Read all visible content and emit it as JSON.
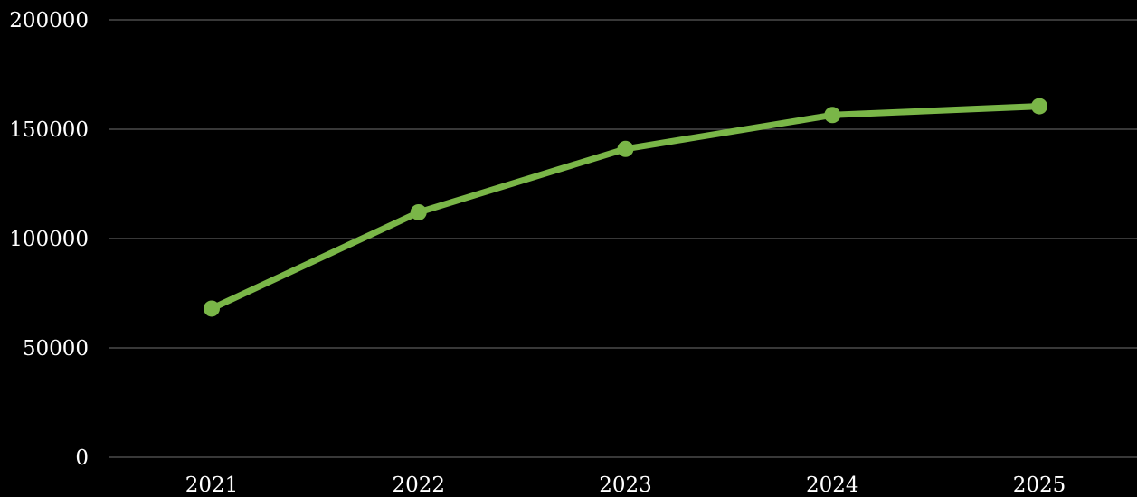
{
  "chart_data": {
    "type": "line",
    "categories": [
      "2021",
      "2022",
      "2023",
      "2024",
      "2025"
    ],
    "series": [
      {
        "values": [
          68000,
          112000,
          141000,
          156500,
          160500
        ]
      }
    ],
    "y_ticks": [
      "0",
      "50000",
      "100000",
      "150000",
      "200000"
    ],
    "ylim": [
      0,
      200000
    ],
    "grid": true,
    "legend": "none",
    "colors": {
      "background": "#000000",
      "line": "#7ab648",
      "grid": "#595959",
      "text": "#ffffff"
    }
  }
}
